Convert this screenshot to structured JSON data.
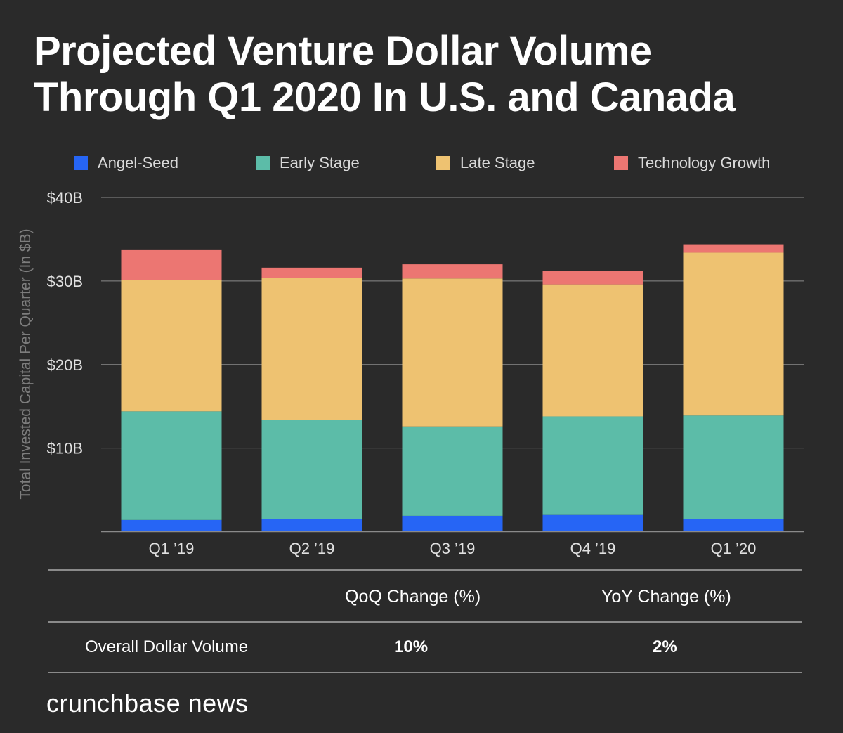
{
  "title": {
    "line1": "Projected Venture Dollar Volume",
    "line2": "Through Q1 2020 In U.S. and Canada"
  },
  "chart_data": {
    "type": "bar",
    "stacked": true,
    "title": "Projected Venture Dollar Volume Through Q1 2020 In U.S. and Canada",
    "xlabel": "",
    "ylabel": "Total Invested Capital Per Quarter (In $B)",
    "ylim": [
      0,
      40
    ],
    "yticks": [
      {
        "value": 10,
        "label": "$10B"
      },
      {
        "value": 20,
        "label": "$20B"
      },
      {
        "value": 30,
        "label": "$30B"
      },
      {
        "value": 40,
        "label": "$40B"
      }
    ],
    "grid": true,
    "legend_position": "top",
    "categories": [
      "Q1 ’19",
      "Q2 ’19",
      "Q3 ’19",
      "Q4 ’19",
      "Q1 ’20"
    ],
    "series": [
      {
        "name": "Angel-Seed",
        "color": "#2665f5",
        "values": [
          1.4,
          1.5,
          1.9,
          2.0,
          1.5
        ]
      },
      {
        "name": "Early Stage",
        "color": "#5cbca8",
        "values": [
          13.0,
          11.9,
          10.7,
          11.8,
          12.4
        ]
      },
      {
        "name": "Late Stage",
        "color": "#eec271",
        "values": [
          15.7,
          17.0,
          17.7,
          15.8,
          19.5
        ]
      },
      {
        "name": "Technology Growth",
        "color": "#ec7672",
        "values": [
          3.6,
          1.2,
          1.7,
          1.6,
          1.0
        ]
      }
    ]
  },
  "table": {
    "headers": [
      "",
      "QoQ Change (%)",
      "YoY Change (%)"
    ],
    "rows": [
      {
        "label": "Overall Dollar Volume",
        "qoq": "10%",
        "yoy": "2%"
      }
    ]
  },
  "brand": "crunchbase news",
  "colors": {
    "background": "#2a2a2a",
    "gridline": "#8a8a8a"
  }
}
